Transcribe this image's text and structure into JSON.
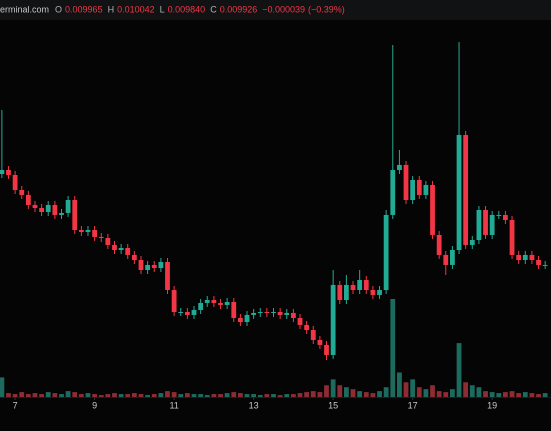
{
  "chart_data": {
    "type": "candlestick",
    "source": "erminal.com",
    "legend": [
      {
        "label": "O",
        "value": 0.009965
      },
      {
        "label": "H",
        "value": 0.010042
      },
      {
        "label": "L",
        "value": {
          "value": 0.00984,
          "label": "0.009840"
        }
      },
      {
        "label": "C",
        "value": 0.009926
      }
    ],
    "change": {
      "value": -3.9e-05,
      "label": "−0.000039"
    },
    "change_pct": {
      "value": -0.39,
      "label": "(−0.39%)"
    },
    "up_color": "#22ab94",
    "down_color": "#f23645",
    "volume_up_color": "#1d6b5f",
    "volume_down_color": "#8e2b33",
    "xlim": [
      6.62,
      20.48
    ],
    "xticks": [
      7,
      9,
      11,
      13,
      15,
      17,
      19
    ],
    "ylim": [
      0.008,
      0.0125
    ],
    "vlim": [
      0,
      100
    ],
    "x": [
      6.667,
      6.833,
      7,
      7.167,
      7.333,
      7.5,
      7.667,
      7.833,
      8,
      8.167,
      8.333,
      8.5,
      8.667,
      8.833,
      9,
      9.167,
      9.333,
      9.5,
      9.667,
      9.833,
      10,
      10.167,
      10.333,
      10.5,
      10.667,
      10.833,
      11,
      11.167,
      11.333,
      11.5,
      11.667,
      11.833,
      12,
      12.167,
      12.333,
      12.5,
      12.667,
      12.833,
      13,
      13.167,
      13.333,
      13.5,
      13.667,
      13.833,
      14,
      14.167,
      14.333,
      14.5,
      14.667,
      14.833,
      15,
      15.167,
      15.333,
      15.5,
      15.667,
      15.833,
      16,
      16.167,
      16.333,
      16.5,
      16.667,
      16.833,
      17,
      17.167,
      17.333,
      17.5,
      17.667,
      17.833,
      18,
      18.167,
      18.333,
      18.5,
      18.667,
      18.833,
      19,
      19.167,
      19.333,
      19.5,
      19.667,
      19.833,
      20,
      20.167,
      20.333
    ],
    "open": [
      0.01045,
      0.0105,
      0.010438,
      0.01025,
      0.010188,
      0.010063,
      0.010025,
      0.009975,
      0.010063,
      0.009938,
      0.009963,
      0.010125,
      0.00975,
      0.009725,
      0.00975,
      0.009663,
      0.00965,
      0.009563,
      0.0095,
      0.009525,
      0.009438,
      0.009375,
      0.00925,
      0.009313,
      0.009275,
      0.00935,
      0.009,
      0.008725,
      0.008725,
      0.008688,
      0.00875,
      0.008838,
      0.008875,
      0.008838,
      0.008813,
      0.00885,
      0.00865,
      0.0086,
      0.008688,
      0.008713,
      0.008725,
      0.008713,
      0.008725,
      0.008688,
      0.008713,
      0.00865,
      0.008563,
      0.0085,
      0.008375,
      0.008313,
      0.008188,
      0.009063,
      0.008875,
      0.009063,
      0.009,
      0.009125,
      0.009,
      0.008938,
      0.009,
      0.009938,
      0.0105,
      0.010563,
      0.010125,
      0.010375,
      0.010188,
      0.010313,
      0.009688,
      0.009438,
      0.009313,
      0.0095,
      0.010938,
      0.009563,
      0.009625,
      0.01,
      0.009688,
      0.009938,
      0.009938,
      0.009875,
      0.009438,
      0.009375,
      0.009438,
      0.009375,
      0.009313
    ],
    "high": [
      0.01125,
      0.01055,
      0.010488,
      0.0103,
      0.010238,
      0.010113,
      0.010075,
      0.010113,
      0.010113,
      0.010013,
      0.010175,
      0.010175,
      0.0098,
      0.0098,
      0.0098,
      0.009713,
      0.0097,
      0.009613,
      0.009575,
      0.009575,
      0.009488,
      0.009425,
      0.009363,
      0.009363,
      0.0094,
      0.0094,
      0.00905,
      0.008775,
      0.008775,
      0.0088,
      0.008888,
      0.008925,
      0.008925,
      0.008888,
      0.0089,
      0.0089,
      0.0087,
      0.008738,
      0.008763,
      0.008775,
      0.008775,
      0.008775,
      0.008775,
      0.008763,
      0.008763,
      0.0087,
      0.008613,
      0.00855,
      0.008425,
      0.008363,
      0.00925,
      0.009113,
      0.009188,
      0.009113,
      0.00925,
      0.009175,
      0.00905,
      0.00905,
      0.01,
      0.012063,
      0.01075,
      0.010613,
      0.010425,
      0.010425,
      0.010363,
      0.010363,
      0.009738,
      0.009488,
      0.00955,
      0.0121,
      0.010988,
      0.009675,
      0.01005,
      0.01005,
      0.009988,
      0.009988,
      0.009988,
      0.009925,
      0.009488,
      0.009488,
      0.009488,
      0.009425,
      0.009363
    ],
    "low": [
      0.0104,
      0.010388,
      0.0102,
      0.010138,
      0.010013,
      0.009975,
      0.009925,
      0.009925,
      0.009888,
      0.009888,
      0.009913,
      0.0097,
      0.009675,
      0.009675,
      0.009613,
      0.0096,
      0.009513,
      0.00945,
      0.00945,
      0.009388,
      0.009325,
      0.0092,
      0.0092,
      0.009225,
      0.009225,
      0.00895,
      0.008675,
      0.008675,
      0.008638,
      0.008638,
      0.0087,
      0.008788,
      0.008788,
      0.008763,
      0.008763,
      0.0086,
      0.00855,
      0.00855,
      0.008638,
      0.008663,
      0.008663,
      0.008663,
      0.008638,
      0.008638,
      0.0086,
      0.008513,
      0.00845,
      0.008325,
      0.008263,
      0.008125,
      0.008138,
      0.008825,
      0.008825,
      0.00895,
      0.00895,
      0.00895,
      0.008888,
      0.008888,
      0.00895,
      0.009888,
      0.01045,
      0.010075,
      0.010075,
      0.010138,
      0.010138,
      0.009638,
      0.009388,
      0.009188,
      0.009263,
      0.00945,
      0.009513,
      0.009513,
      0.009575,
      0.009638,
      0.009638,
      0.009888,
      0.009825,
      0.009388,
      0.009325,
      0.009325,
      0.009325,
      0.009263,
      0.009263
    ],
    "close": [
      0.0105,
      0.010438,
      0.01025,
      0.010188,
      0.010063,
      0.010025,
      0.009975,
      0.010063,
      0.009938,
      0.009963,
      0.010125,
      0.00975,
      0.009725,
      0.00975,
      0.009663,
      0.00965,
      0.009563,
      0.0095,
      0.009525,
      0.009438,
      0.009375,
      0.00925,
      0.009313,
      0.009275,
      0.00935,
      0.009,
      0.008725,
      0.008725,
      0.008688,
      0.00875,
      0.008838,
      0.008875,
      0.008838,
      0.008813,
      0.00885,
      0.00865,
      0.0086,
      0.008688,
      0.008713,
      0.008725,
      0.008713,
      0.008725,
      0.008688,
      0.008713,
      0.00865,
      0.008563,
      0.0085,
      0.008375,
      0.008313,
      0.008188,
      0.009063,
      0.008875,
      0.009063,
      0.009,
      0.009125,
      0.009,
      0.008938,
      0.009,
      0.009938,
      0.0105,
      0.010563,
      0.010125,
      0.010375,
      0.010188,
      0.010313,
      0.009688,
      0.009438,
      0.009313,
      0.0095,
      0.010938,
      0.009563,
      0.009625,
      0.01,
      0.009688,
      0.009938,
      0.009938,
      0.009875,
      0.009438,
      0.009375,
      0.009438,
      0.009375,
      0.009313,
      0.009313
    ],
    "volume": [
      20,
      4,
      3,
      5,
      3,
      4,
      3,
      5,
      4,
      3,
      6,
      5,
      3,
      4,
      3,
      2,
      3,
      4,
      3,
      3,
      4,
      3,
      2,
      3,
      4,
      6,
      5,
      3,
      4,
      3,
      3,
      2,
      3,
      3,
      4,
      5,
      4,
      3,
      3,
      2,
      3,
      3,
      2,
      3,
      3,
      4,
      5,
      6,
      5,
      12,
      18,
      12,
      10,
      8,
      6,
      5,
      4,
      6,
      10,
      100,
      25,
      15,
      18,
      10,
      8,
      12,
      6,
      5,
      8,
      55,
      15,
      12,
      10,
      6,
      5,
      4,
      5,
      6,
      4,
      5,
      4,
      3,
      4
    ]
  }
}
